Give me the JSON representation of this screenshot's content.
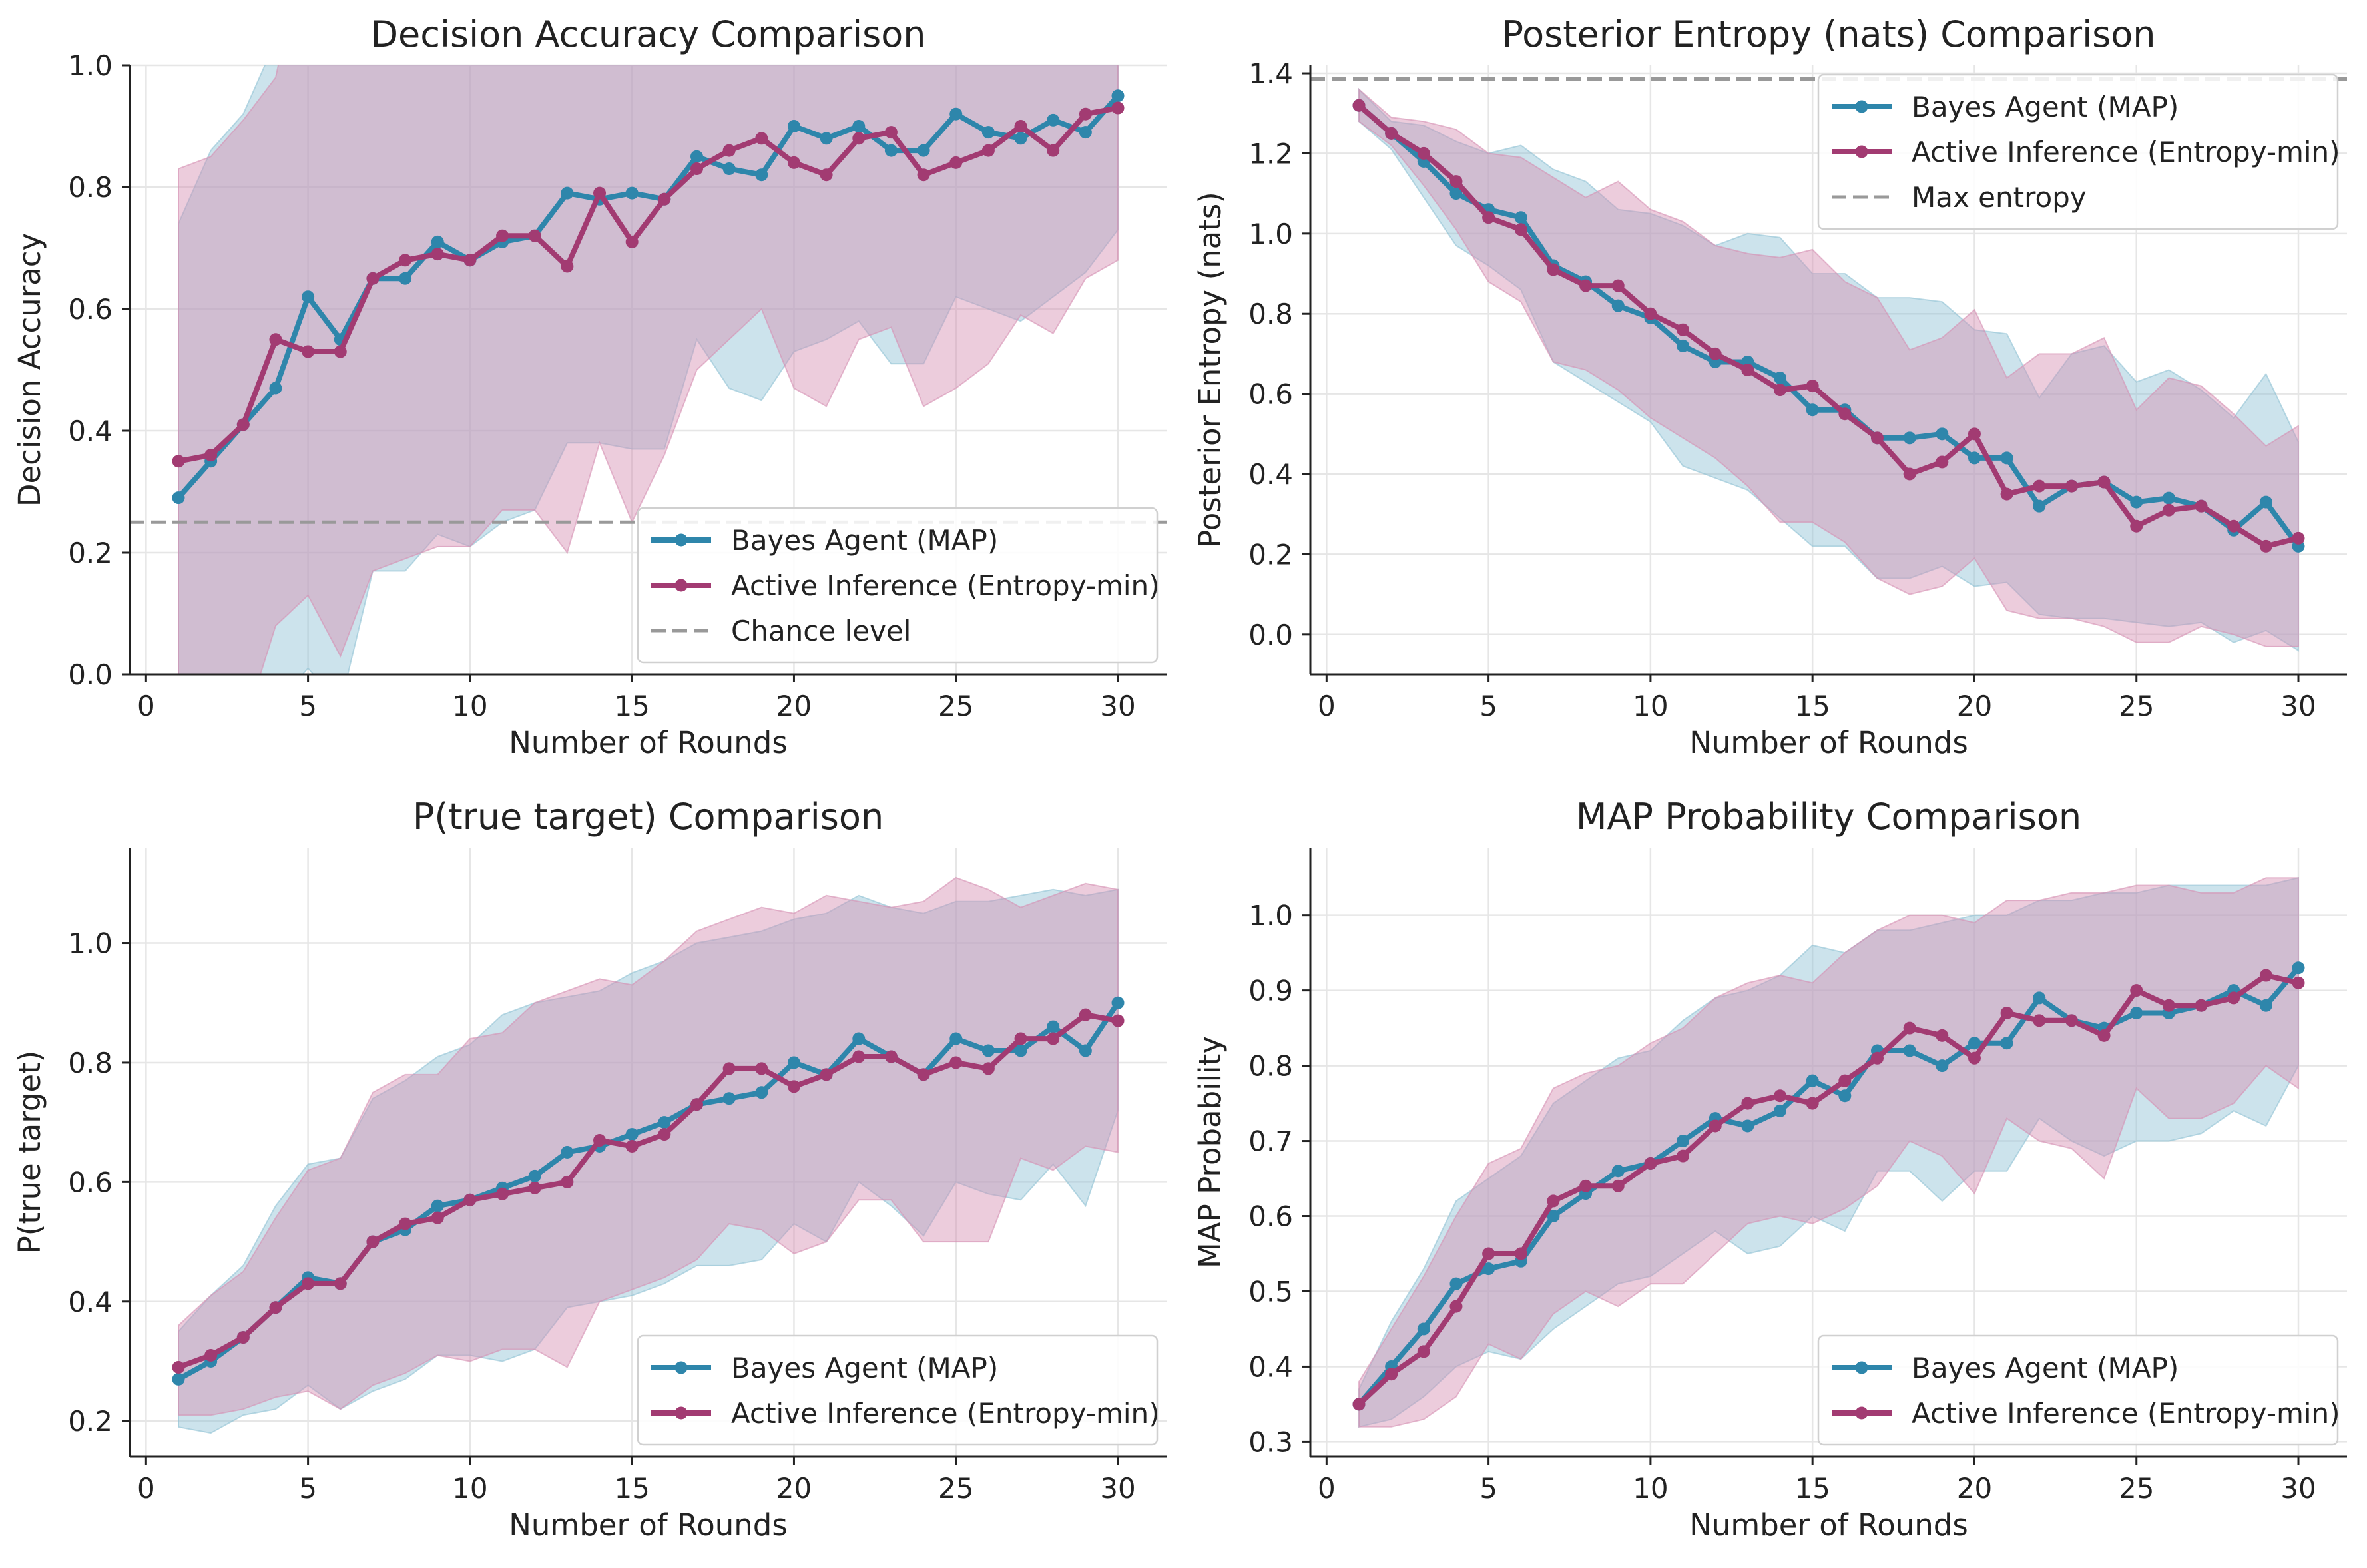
{
  "colors": {
    "bayes": "#2e86ab",
    "active": "#a23b72",
    "reference": "#999999",
    "band_bayes": "#8fc1d4",
    "band_active": "#d58fb2"
  },
  "chart_data": [
    {
      "type": "line",
      "title": "Decision Accuracy Comparison",
      "xlabel": "Number of Rounds",
      "ylabel": "Decision Accuracy",
      "xlim": [
        -0.5,
        31.5
      ],
      "ylim": [
        0,
        1
      ],
      "xticks": [
        "0",
        "5",
        "10",
        "15",
        "20",
        "25",
        "30"
      ],
      "yticks": [
        "0.0",
        "0.2",
        "0.4",
        "0.6",
        "0.8",
        "1.0"
      ],
      "grid": true,
      "legend": "lower-right",
      "x": [
        1,
        2,
        3,
        4,
        5,
        6,
        7,
        8,
        9,
        10,
        11,
        12,
        13,
        14,
        15,
        16,
        17,
        18,
        19,
        20,
        21,
        22,
        23,
        24,
        25,
        26,
        27,
        28,
        29,
        30
      ],
      "series": [
        {
          "name": "Bayes Agent (MAP)",
          "values": [
            0.29,
            0.35,
            0.41,
            0.47,
            0.62,
            0.55,
            0.65,
            0.65,
            0.71,
            0.68,
            0.71,
            0.72,
            0.79,
            0.78,
            0.79,
            0.78,
            0.85,
            0.83,
            0.82,
            0.9,
            0.88,
            0.9,
            0.86,
            0.86,
            0.92,
            0.89,
            0.88,
            0.91,
            0.89,
            0.95
          ],
          "lower": [
            -0.16,
            -0.16,
            -0.1,
            -0.05,
            0.01,
            -0.05,
            0.17,
            0.17,
            0.23,
            0.21,
            0.25,
            0.27,
            0.38,
            0.38,
            0.37,
            0.37,
            0.55,
            0.47,
            0.45,
            0.53,
            0.55,
            0.58,
            0.51,
            0.51,
            0.62,
            0.6,
            0.58,
            0.62,
            0.66,
            0.73
          ],
          "upper": [
            0.74,
            0.86,
            0.92,
            1.04,
            1.23,
            1.15,
            1.13,
            1.13,
            1.19,
            1.15,
            1.17,
            1.17,
            1.2,
            1.18,
            1.21,
            1.19,
            1.15,
            1.19,
            1.19,
            1.27,
            1.21,
            1.22,
            1.21,
            1.21,
            1.22,
            1.18,
            1.18,
            1.2,
            1.12,
            1.17
          ]
        },
        {
          "name": "Active Inference (Entropy-min)",
          "values": [
            0.35,
            0.36,
            0.41,
            0.55,
            0.53,
            0.53,
            0.65,
            0.68,
            0.69,
            0.68,
            0.72,
            0.72,
            0.67,
            0.79,
            0.71,
            0.78,
            0.83,
            0.86,
            0.88,
            0.84,
            0.82,
            0.88,
            0.89,
            0.82,
            0.84,
            0.86,
            0.9,
            0.86,
            0.92,
            0.93
          ],
          "lower": [
            -0.13,
            -0.13,
            -0.09,
            0.08,
            0.13,
            0.03,
            0.17,
            0.19,
            0.21,
            0.21,
            0.27,
            0.27,
            0.2,
            0.38,
            0.25,
            0.36,
            0.5,
            0.55,
            0.6,
            0.47,
            0.44,
            0.55,
            0.57,
            0.44,
            0.47,
            0.51,
            0.59,
            0.56,
            0.65,
            0.68
          ],
          "upper": [
            0.83,
            0.85,
            0.91,
            0.98,
            1.23,
            1.03,
            1.13,
            1.17,
            1.17,
            1.15,
            1.17,
            1.17,
            1.14,
            1.2,
            1.17,
            1.2,
            1.16,
            1.17,
            1.16,
            1.21,
            1.2,
            1.21,
            1.21,
            1.2,
            1.21,
            1.21,
            1.21,
            1.16,
            1.19,
            1.18
          ]
        }
      ],
      "reference": {
        "name": "Chance level",
        "y": 0.25,
        "orientation": "horizontal"
      }
    },
    {
      "type": "line",
      "title": "Posterior Entropy (nats) Comparison",
      "xlabel": "Number of Rounds",
      "ylabel": "Posterior Entropy (nats)",
      "xlim": [
        -0.5,
        31.5
      ],
      "ylim": [
        -0.1,
        1.42
      ],
      "xticks": [
        "0",
        "5",
        "10",
        "15",
        "20",
        "25",
        "30"
      ],
      "yticks": [
        "0.0",
        "0.2",
        "0.4",
        "0.6",
        "0.8",
        "1.0",
        "1.2",
        "1.4"
      ],
      "grid": true,
      "legend": "top-right",
      "x": [
        1,
        2,
        3,
        4,
        5,
        6,
        7,
        8,
        9,
        10,
        11,
        12,
        13,
        14,
        15,
        16,
        17,
        18,
        19,
        20,
        21,
        22,
        23,
        24,
        25,
        26,
        27,
        28,
        29,
        30
      ],
      "series": [
        {
          "name": "Bayes Agent (MAP)",
          "values": [
            1.32,
            1.25,
            1.18,
            1.1,
            1.06,
            1.04,
            0.92,
            0.88,
            0.82,
            0.79,
            0.72,
            0.68,
            0.68,
            0.64,
            0.56,
            0.56,
            0.49,
            0.49,
            0.5,
            0.44,
            0.44,
            0.32,
            0.37,
            0.38,
            0.33,
            0.34,
            0.32,
            0.26,
            0.33,
            0.22
          ],
          "lower": [
            1.28,
            1.21,
            1.09,
            0.97,
            0.92,
            0.86,
            0.68,
            0.63,
            0.58,
            0.53,
            0.42,
            0.39,
            0.36,
            0.29,
            0.22,
            0.22,
            0.14,
            0.14,
            0.17,
            0.12,
            0.13,
            0.05,
            0.04,
            0.04,
            0.03,
            0.02,
            0.03,
            -0.02,
            0.01,
            -0.04
          ],
          "upper": [
            1.36,
            1.28,
            1.27,
            1.23,
            1.2,
            1.22,
            1.16,
            1.13,
            1.06,
            1.05,
            1.02,
            0.97,
            1.0,
            0.99,
            0.9,
            0.9,
            0.84,
            0.84,
            0.83,
            0.76,
            0.75,
            0.59,
            0.7,
            0.72,
            0.63,
            0.66,
            0.61,
            0.54,
            0.65,
            0.48
          ]
        },
        {
          "name": "Active Inference (Entropy-min)",
          "values": [
            1.32,
            1.25,
            1.2,
            1.13,
            1.04,
            1.01,
            0.91,
            0.87,
            0.87,
            0.8,
            0.76,
            0.7,
            0.66,
            0.61,
            0.62,
            0.55,
            0.49,
            0.4,
            0.43,
            0.5,
            0.35,
            0.37,
            0.37,
            0.38,
            0.27,
            0.31,
            0.32,
            0.27,
            0.22,
            0.24
          ],
          "lower": [
            1.28,
            1.22,
            1.12,
            1.01,
            0.88,
            0.83,
            0.68,
            0.66,
            0.61,
            0.54,
            0.49,
            0.44,
            0.37,
            0.28,
            0.28,
            0.23,
            0.14,
            0.1,
            0.12,
            0.19,
            0.06,
            0.04,
            0.04,
            0.02,
            -0.02,
            -0.02,
            0.02,
            0.0,
            -0.03,
            -0.03
          ],
          "upper": [
            1.36,
            1.29,
            1.28,
            1.26,
            1.2,
            1.19,
            1.14,
            1.09,
            1.13,
            1.06,
            1.03,
            0.97,
            0.95,
            0.94,
            0.96,
            0.88,
            0.84,
            0.71,
            0.74,
            0.81,
            0.64,
            0.7,
            0.7,
            0.74,
            0.56,
            0.64,
            0.62,
            0.55,
            0.47,
            0.52
          ]
        }
      ],
      "reference": {
        "name": "Max entropy",
        "y": 1.386,
        "orientation": "horizontal"
      }
    },
    {
      "type": "line",
      "title": "P(true target) Comparison",
      "xlabel": "Number of Rounds",
      "ylabel": "P(true target)",
      "xlim": [
        -0.5,
        31.5
      ],
      "ylim": [
        0.14,
        1.16
      ],
      "xticks": [
        "0",
        "5",
        "10",
        "15",
        "20",
        "25",
        "30"
      ],
      "yticks": [
        "0.2",
        "0.4",
        "0.6",
        "0.8",
        "1.0"
      ],
      "grid": true,
      "legend": "lower-right",
      "x": [
        1,
        2,
        3,
        4,
        5,
        6,
        7,
        8,
        9,
        10,
        11,
        12,
        13,
        14,
        15,
        16,
        17,
        18,
        19,
        20,
        21,
        22,
        23,
        24,
        25,
        26,
        27,
        28,
        29,
        30
      ],
      "series": [
        {
          "name": "Bayes Agent (MAP)",
          "values": [
            0.27,
            0.3,
            0.34,
            0.39,
            0.44,
            0.43,
            0.5,
            0.52,
            0.56,
            0.57,
            0.59,
            0.61,
            0.65,
            0.66,
            0.68,
            0.7,
            0.73,
            0.74,
            0.75,
            0.8,
            0.78,
            0.84,
            0.81,
            0.78,
            0.84,
            0.82,
            0.82,
            0.86,
            0.82,
            0.9
          ],
          "lower": [
            0.19,
            0.18,
            0.21,
            0.22,
            0.26,
            0.22,
            0.25,
            0.27,
            0.31,
            0.31,
            0.3,
            0.32,
            0.39,
            0.4,
            0.41,
            0.43,
            0.46,
            0.46,
            0.47,
            0.53,
            0.5,
            0.6,
            0.56,
            0.51,
            0.6,
            0.58,
            0.57,
            0.63,
            0.56,
            0.72
          ],
          "upper": [
            0.35,
            0.41,
            0.46,
            0.56,
            0.63,
            0.64,
            0.74,
            0.77,
            0.81,
            0.83,
            0.88,
            0.9,
            0.91,
            0.92,
            0.95,
            0.97,
            1.0,
            1.01,
            1.02,
            1.04,
            1.05,
            1.08,
            1.06,
            1.05,
            1.07,
            1.07,
            1.08,
            1.09,
            1.08,
            1.09
          ]
        },
        {
          "name": "Active Inference (Entropy-min)",
          "values": [
            0.29,
            0.31,
            0.34,
            0.39,
            0.43,
            0.43,
            0.5,
            0.53,
            0.54,
            0.57,
            0.58,
            0.59,
            0.6,
            0.67,
            0.66,
            0.68,
            0.73,
            0.79,
            0.79,
            0.76,
            0.78,
            0.81,
            0.81,
            0.78,
            0.8,
            0.79,
            0.84,
            0.84,
            0.88,
            0.87
          ],
          "lower": [
            0.21,
            0.21,
            0.22,
            0.24,
            0.25,
            0.22,
            0.26,
            0.28,
            0.31,
            0.3,
            0.32,
            0.32,
            0.29,
            0.4,
            0.42,
            0.44,
            0.47,
            0.53,
            0.52,
            0.48,
            0.5,
            0.57,
            0.57,
            0.5,
            0.5,
            0.5,
            0.64,
            0.62,
            0.66,
            0.65
          ],
          "upper": [
            0.36,
            0.41,
            0.45,
            0.54,
            0.62,
            0.64,
            0.75,
            0.78,
            0.78,
            0.84,
            0.85,
            0.9,
            0.92,
            0.94,
            0.93,
            0.97,
            1.02,
            1.04,
            1.06,
            1.05,
            1.08,
            1.07,
            1.06,
            1.07,
            1.11,
            1.09,
            1.06,
            1.08,
            1.1,
            1.09
          ]
        }
      ]
    },
    {
      "type": "line",
      "title": "MAP Probability Comparison",
      "xlabel": "Number of Rounds",
      "ylabel": "MAP Probability",
      "xlim": [
        -0.5,
        31.5
      ],
      "ylim": [
        0.28,
        1.09
      ],
      "xticks": [
        "0",
        "5",
        "10",
        "15",
        "20",
        "25",
        "30"
      ],
      "yticks": [
        "0.3",
        "0.4",
        "0.5",
        "0.6",
        "0.7",
        "0.8",
        "0.9",
        "1.0"
      ],
      "grid": true,
      "legend": "lower-right",
      "x": [
        1,
        2,
        3,
        4,
        5,
        6,
        7,
        8,
        9,
        10,
        11,
        12,
        13,
        14,
        15,
        16,
        17,
        18,
        19,
        20,
        21,
        22,
        23,
        24,
        25,
        26,
        27,
        28,
        29,
        30
      ],
      "series": [
        {
          "name": "Bayes Agent (MAP)",
          "values": [
            0.35,
            0.4,
            0.45,
            0.51,
            0.53,
            0.54,
            0.6,
            0.63,
            0.66,
            0.67,
            0.7,
            0.73,
            0.72,
            0.74,
            0.78,
            0.76,
            0.82,
            0.82,
            0.8,
            0.83,
            0.83,
            0.89,
            0.86,
            0.85,
            0.87,
            0.87,
            0.88,
            0.9,
            0.88,
            0.93
          ],
          "lower": [
            0.32,
            0.33,
            0.36,
            0.4,
            0.42,
            0.41,
            0.45,
            0.48,
            0.51,
            0.52,
            0.55,
            0.58,
            0.55,
            0.56,
            0.6,
            0.58,
            0.66,
            0.66,
            0.62,
            0.66,
            0.66,
            0.73,
            0.7,
            0.68,
            0.7,
            0.7,
            0.71,
            0.74,
            0.72,
            0.8
          ],
          "upper": [
            0.37,
            0.46,
            0.53,
            0.62,
            0.65,
            0.68,
            0.75,
            0.78,
            0.81,
            0.82,
            0.86,
            0.89,
            0.9,
            0.92,
            0.96,
            0.95,
            0.98,
            0.98,
            0.99,
            1.0,
            1.0,
            1.02,
            1.02,
            1.03,
            1.03,
            1.04,
            1.04,
            1.04,
            1.04,
            1.05
          ]
        },
        {
          "name": "Active Inference (Entropy-min)",
          "values": [
            0.35,
            0.39,
            0.42,
            0.48,
            0.55,
            0.55,
            0.62,
            0.64,
            0.64,
            0.67,
            0.68,
            0.72,
            0.75,
            0.76,
            0.75,
            0.78,
            0.81,
            0.85,
            0.84,
            0.81,
            0.87,
            0.86,
            0.86,
            0.84,
            0.9,
            0.88,
            0.88,
            0.89,
            0.92,
            0.91
          ],
          "lower": [
            0.32,
            0.32,
            0.33,
            0.36,
            0.43,
            0.41,
            0.47,
            0.5,
            0.48,
            0.51,
            0.51,
            0.55,
            0.59,
            0.6,
            0.59,
            0.61,
            0.64,
            0.7,
            0.68,
            0.63,
            0.73,
            0.7,
            0.69,
            0.65,
            0.77,
            0.73,
            0.73,
            0.75,
            0.8,
            0.77
          ],
          "upper": [
            0.38,
            0.45,
            0.52,
            0.6,
            0.67,
            0.69,
            0.77,
            0.79,
            0.8,
            0.83,
            0.85,
            0.89,
            0.91,
            0.92,
            0.91,
            0.95,
            0.98,
            1.0,
            1.0,
            0.99,
            1.02,
            1.02,
            1.03,
            1.03,
            1.04,
            1.04,
            1.03,
            1.03,
            1.05,
            1.05
          ]
        }
      ]
    }
  ]
}
